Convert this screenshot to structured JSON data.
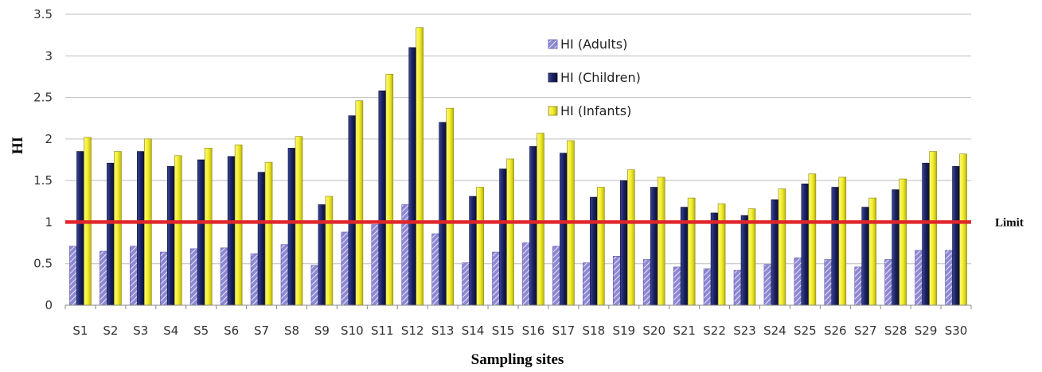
{
  "chart_data": {
    "type": "bar",
    "xlabel": "Sampling sites",
    "ylabel": "HI",
    "ylim": [
      0,
      3.5
    ],
    "yticks": [
      "0",
      "0.5",
      "1",
      "1.5",
      "2",
      "2.5",
      "3",
      "3.5"
    ],
    "grid": "horizontal",
    "legend_position": "top-center",
    "categories": [
      "S1",
      "S2",
      "S3",
      "S4",
      "S5",
      "S6",
      "S7",
      "S8",
      "S9",
      "S10",
      "S11",
      "S12",
      "S13",
      "S14",
      "S15",
      "S16",
      "S17",
      "S18",
      "S19",
      "S20",
      "S21",
      "S22",
      "S23",
      "S24",
      "S25",
      "S26",
      "S27",
      "S28",
      "S29",
      "S30"
    ],
    "series": [
      {
        "name": "HI (Adults)",
        "color": "#8e88d4",
        "pattern": "diagonal-hatch",
        "values": [
          0.71,
          0.65,
          0.71,
          0.64,
          0.68,
          0.69,
          0.62,
          0.73,
          0.48,
          0.88,
          0.97,
          1.21,
          0.86,
          0.51,
          0.64,
          0.75,
          0.71,
          0.51,
          0.59,
          0.55,
          0.46,
          0.44,
          0.42,
          0.49,
          0.57,
          0.55,
          0.46,
          0.55,
          0.66,
          0.66
        ]
      },
      {
        "name": "HI (Children)",
        "color": "#1a2060",
        "values": [
          1.85,
          1.71,
          1.85,
          1.67,
          1.75,
          1.79,
          1.6,
          1.89,
          1.21,
          2.28,
          2.58,
          3.1,
          2.2,
          1.31,
          1.64,
          1.91,
          1.83,
          1.3,
          1.5,
          1.42,
          1.18,
          1.11,
          1.08,
          1.27,
          1.46,
          1.42,
          1.18,
          1.39,
          1.71,
          1.67
        ]
      },
      {
        "name": "HI (Infants)",
        "color": "#f2ee2c",
        "values": [
          2.02,
          1.85,
          2.0,
          1.8,
          1.89,
          1.93,
          1.72,
          2.03,
          1.31,
          2.46,
          2.78,
          3.34,
          2.37,
          1.42,
          1.76,
          2.07,
          1.98,
          1.42,
          1.63,
          1.54,
          1.29,
          1.22,
          1.16,
          1.4,
          1.58,
          1.54,
          1.29,
          1.52,
          1.85,
          1.82
        ]
      }
    ],
    "limit": {
      "value": 1,
      "label": "Limit",
      "color": "#e0262b"
    }
  }
}
